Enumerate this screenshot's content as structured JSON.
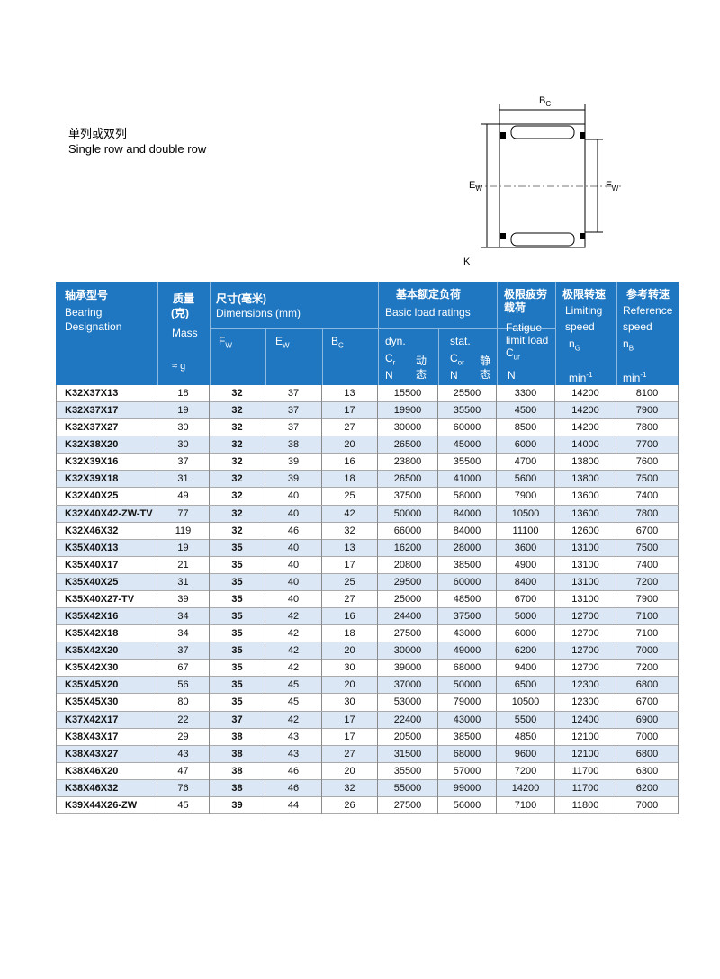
{
  "header": {
    "title_cn": "单列或双列",
    "title_en": "Single row and double row"
  },
  "diagram": {
    "labels": [
      {
        "main": "B",
        "sub": "C"
      },
      {
        "main": "E",
        "sub": "W"
      },
      {
        "main": "F",
        "sub": "W"
      },
      {
        "main": "K"
      }
    ]
  },
  "table": {
    "columns": {
      "designation": {
        "cn": "轴承型号",
        "en": [
          "Bearing",
          "Designation"
        ]
      },
      "mass": {
        "cn": [
          "质量",
          "(克)"
        ],
        "en": "Mass",
        "unit": "≈ g"
      },
      "dimensions": {
        "cn": "尺寸(毫米)",
        "en": "Dimensions (mm)",
        "sub": [
          {
            "main": "F",
            "sub": "W"
          },
          {
            "main": "E",
            "sub": "W"
          },
          {
            "main": "B",
            "sub": "C"
          }
        ]
      },
      "load": {
        "cn": "基本额定负荷",
        "en": "Basic load ratings",
        "dyn": {
          "label": "dyn.",
          "main": "C",
          "sub": "r",
          "cn": [
            "动",
            "态"
          ],
          "unit": "N"
        },
        "stat": {
          "label": "stat.",
          "main": "C",
          "sub": "or",
          "cn": [
            "静",
            "态"
          ],
          "unit": "N"
        }
      },
      "fatigue": {
        "cn": [
          "极限疲劳",
          "载荷"
        ],
        "en": [
          "Fatigue",
          "limit load"
        ],
        "main": "C",
        "sub": "ur",
        "unit": "N"
      },
      "limiting": {
        "cn": "极限转速",
        "en": [
          "Limiting",
          "speed"
        ],
        "main": "n",
        "sub": "G",
        "unit": "min",
        "sup": "-1"
      },
      "reference": {
        "cn": "参考转速",
        "en": [
          "Reference",
          "speed"
        ],
        "main": "n",
        "sub": "B",
        "unit": "min",
        "sup": "-1"
      }
    },
    "rows": [
      [
        "K32X37X13",
        18,
        32,
        37,
        13,
        15500,
        25500,
        3300,
        14200,
        8100
      ],
      [
        "K32X37X17",
        19,
        32,
        37,
        17,
        19900,
        35500,
        4500,
        14200,
        7900
      ],
      [
        "K32X37X27",
        30,
        32,
        37,
        27,
        30000,
        60000,
        8500,
        14200,
        7800
      ],
      [
        "K32X38X20",
        30,
        32,
        38,
        20,
        26500,
        45000,
        6000,
        14000,
        7700
      ],
      [
        "K32X39X16",
        37,
        32,
        39,
        16,
        23800,
        35500,
        4700,
        13800,
        7600
      ],
      [
        "K32X39X18",
        31,
        32,
        39,
        18,
        26500,
        41000,
        5600,
        13800,
        7500
      ],
      [
        "K32X40X25",
        49,
        32,
        40,
        25,
        37500,
        58000,
        7900,
        13600,
        7400
      ],
      [
        "K32X40X42-ZW-TV",
        77,
        32,
        40,
        42,
        50000,
        84000,
        10500,
        13600,
        7800
      ],
      [
        "K32X46X32",
        119,
        32,
        46,
        32,
        66000,
        84000,
        11100,
        12600,
        6700
      ],
      [
        "K35X40X13",
        19,
        35,
        40,
        13,
        16200,
        28000,
        3600,
        13100,
        7500
      ],
      [
        "K35X40X17",
        21,
        35,
        40,
        17,
        20800,
        38500,
        4900,
        13100,
        7400
      ],
      [
        "K35X40X25",
        31,
        35,
        40,
        25,
        29500,
        60000,
        8400,
        13100,
        7200
      ],
      [
        "K35X40X27-TV",
        39,
        35,
        40,
        27,
        25000,
        48500,
        6700,
        13100,
        7900
      ],
      [
        "K35X42X16",
        34,
        35,
        42,
        16,
        24400,
        37500,
        5000,
        12700,
        7100
      ],
      [
        "K35X42X18",
        34,
        35,
        42,
        18,
        27500,
        43000,
        6000,
        12700,
        7100
      ],
      [
        "K35X42X20",
        37,
        35,
        42,
        20,
        30000,
        49000,
        6200,
        12700,
        7000
      ],
      [
        "K35X42X30",
        67,
        35,
        42,
        30,
        39000,
        68000,
        9400,
        12700,
        7200
      ],
      [
        "K35X45X20",
        56,
        35,
        45,
        20,
        37000,
        50000,
        6500,
        12300,
        6800
      ],
      [
        "K35X45X30",
        80,
        35,
        45,
        30,
        53000,
        79000,
        10500,
        12300,
        6700
      ],
      [
        "K37X42X17",
        22,
        37,
        42,
        17,
        22400,
        43000,
        5500,
        12400,
        6900
      ],
      [
        "K38X43X17",
        29,
        38,
        43,
        17,
        20500,
        38500,
        4850,
        12100,
        7000
      ],
      [
        "K38X43X27",
        43,
        38,
        43,
        27,
        31500,
        68000,
        9600,
        12100,
        6800
      ],
      [
        "K38X46X20",
        47,
        38,
        46,
        20,
        35500,
        57000,
        7200,
        11700,
        6300
      ],
      [
        "K38X46X32",
        76,
        38,
        46,
        32,
        55000,
        99000,
        14200,
        11700,
        6200
      ],
      [
        "K39X44X26-ZW",
        45,
        39,
        44,
        26,
        27500,
        56000,
        7100,
        11800,
        7000
      ]
    ]
  }
}
